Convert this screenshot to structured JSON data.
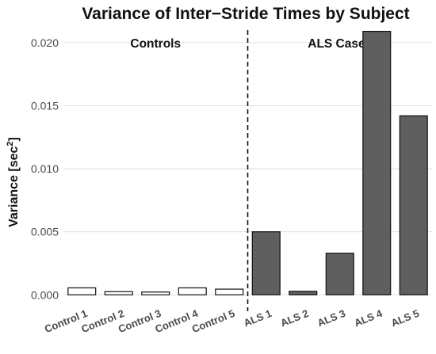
{
  "chart_data": {
    "type": "bar",
    "title": "Variance of Inter−Stride Times by Subject",
    "ylabel_main": "Variance [sec",
    "ylabel_sup": "2",
    "ylabel_end": "]",
    "xlabel": "",
    "ylim": [
      -0.0008,
      0.0215
    ],
    "yticks": [
      0.0,
      0.005,
      0.01,
      0.015,
      0.02
    ],
    "ytick_labels": [
      "0.000",
      "0.005",
      "0.010",
      "0.015",
      "0.020"
    ],
    "grid": true,
    "categories": [
      "Control 1",
      "Control 2",
      "Control 3",
      "Control 4",
      "Control 5",
      "ALS 1",
      "ALS 2",
      "ALS 3",
      "ALS 4",
      "ALS 5"
    ],
    "values": [
      0.00055,
      0.00025,
      0.00022,
      0.00055,
      0.00045,
      0.005,
      0.00028,
      0.0033,
      0.0209,
      0.0142
    ],
    "groups": [
      {
        "label": "Controls",
        "members": [
          "Control 1",
          "Control 2",
          "Control 3",
          "Control 4",
          "Control 5"
        ],
        "fill": "#ffffff"
      },
      {
        "label": "ALS Cases",
        "members": [
          "ALS 1",
          "ALS 2",
          "ALS 3",
          "ALS 4",
          "ALS 5"
        ],
        "fill": "#5f5f5f"
      }
    ],
    "bar_stroke": "#111111"
  }
}
